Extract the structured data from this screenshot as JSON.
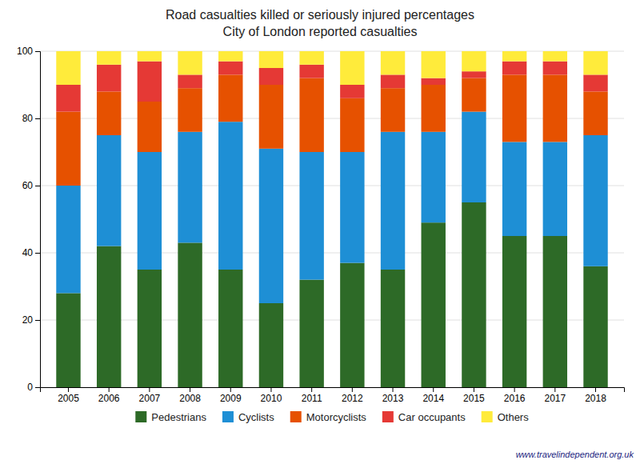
{
  "chart_data": {
    "type": "bar",
    "stacked": true,
    "title": "Road casualties killed or seriously injured percentages",
    "subtitle": "City of London reported casualties",
    "categories": [
      "2005",
      "2006",
      "2007",
      "2008",
      "2009",
      "2010",
      "2011",
      "2012",
      "2013",
      "2014",
      "2015",
      "2016",
      "2017",
      "2018"
    ],
    "series": [
      {
        "name": "Pedestrians",
        "color": "#2d6a27",
        "values": [
          28,
          42,
          35,
          43,
          35,
          25,
          32,
          37,
          35,
          49,
          55,
          45,
          45,
          36
        ]
      },
      {
        "name": "Cyclists",
        "color": "#1e8fd5",
        "values": [
          32,
          33,
          35,
          33,
          44,
          46,
          38,
          33,
          41,
          27,
          27,
          28,
          28,
          39
        ]
      },
      {
        "name": "Motorcyclists",
        "color": "#e65100",
        "values": [
          22,
          13,
          15,
          13,
          14,
          19,
          22,
          16,
          13,
          14,
          10,
          20,
          20,
          13
        ]
      },
      {
        "name": "Car occupants",
        "color": "#e53935",
        "values": [
          8,
          8,
          12,
          4,
          4,
          5,
          4,
          4,
          4,
          2,
          2,
          4,
          4,
          5
        ]
      },
      {
        "name": "Others",
        "color": "#ffeb3b",
        "values": [
          10,
          4,
          3,
          7,
          3,
          5,
          4,
          10,
          7,
          8,
          6,
          3,
          3,
          7
        ]
      }
    ],
    "ylim": [
      0,
      100
    ],
    "yticks": [
      0,
      20,
      40,
      60,
      80,
      100
    ],
    "grid": true,
    "legend": "bottom",
    "annotations": [
      {
        "text": "www.travelindependent.org.uk",
        "color": "#1a237e"
      }
    ]
  }
}
